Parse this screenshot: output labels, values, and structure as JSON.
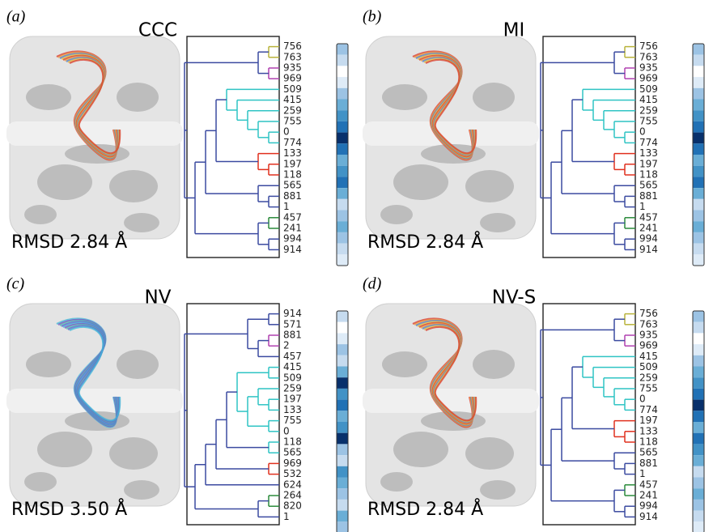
{
  "panels": [
    {
      "label": "(a)",
      "title": "CCC",
      "rmsd": "RMSD 2.84 Å",
      "leaves": [
        "756",
        "763",
        "935",
        "969",
        "509",
        "415",
        "259",
        "755",
        "0",
        "774",
        "133",
        "197",
        "118",
        "565",
        "881",
        "1",
        "457",
        "241",
        "994",
        "914"
      ],
      "colorbar": [
        "#9cc3e4",
        "#c6dbef",
        "#ffffff",
        "#deebf7",
        "#9cc3e4",
        "#6aaed6",
        "#4292c6",
        "#2171b5",
        "#08306b",
        "#2171b5",
        "#6aaed6",
        "#4292c6",
        "#2171b5",
        "#6aaed6",
        "#c6dbef",
        "#9cc3e4",
        "#6aaed6",
        "#9cc3e4",
        "#c6dbef",
        "#deebf7"
      ]
    },
    {
      "label": "(b)",
      "title": "MI",
      "rmsd": "RMSD 2.84 Å",
      "leaves": [
        "756",
        "763",
        "935",
        "969",
        "509",
        "415",
        "259",
        "755",
        "0",
        "774",
        "133",
        "197",
        "118",
        "565",
        "881",
        "1",
        "457",
        "241",
        "994",
        "914"
      ],
      "colorbar": [
        "#9cc3e4",
        "#c6dbef",
        "#ffffff",
        "#deebf7",
        "#9cc3e4",
        "#6aaed6",
        "#4292c6",
        "#2171b5",
        "#08306b",
        "#2171b5",
        "#6aaed6",
        "#4292c6",
        "#2171b5",
        "#6aaed6",
        "#c6dbef",
        "#9cc3e4",
        "#6aaed6",
        "#9cc3e4",
        "#c6dbef",
        "#deebf7"
      ]
    },
    {
      "label": "(c)",
      "title": "NV",
      "rmsd": "RMSD 3.50 Å",
      "leaves": [
        "914",
        "571",
        "881",
        "2",
        "457",
        "415",
        "509",
        "259",
        "197",
        "133",
        "755",
        "0",
        "118",
        "565",
        "969",
        "532",
        "624",
        "264",
        "820",
        "1"
      ],
      "colorbar": [
        "#c6dbef",
        "#ffffff",
        "#deebf7",
        "#9cc3e4",
        "#c6dbef",
        "#6aaed6",
        "#08306b",
        "#4292c6",
        "#2171b5",
        "#6aaed6",
        "#4292c6",
        "#08306b",
        "#9cc3e4",
        "#c6dbef",
        "#4292c6",
        "#6aaed6",
        "#9cc3e4",
        "#c6dbef",
        "#6aaed6",
        "#9cc3e4"
      ]
    },
    {
      "label": "(d)",
      "title": "NV-S",
      "rmsd": "RMSD 2.84 Å",
      "leaves": [
        "756",
        "763",
        "935",
        "969",
        "415",
        "509",
        "259",
        "755",
        "0",
        "774",
        "197",
        "133",
        "118",
        "565",
        "881",
        "1",
        "457",
        "241",
        "994",
        "914"
      ],
      "colorbar": [
        "#9cc3e4",
        "#c6dbef",
        "#ffffff",
        "#deebf7",
        "#9cc3e4",
        "#6aaed6",
        "#4292c6",
        "#2171b5",
        "#08306b",
        "#2171b5",
        "#6aaed6",
        "#2171b5",
        "#4292c6",
        "#6aaed6",
        "#c6dbef",
        "#9cc3e4",
        "#6aaed6",
        "#9cc3e4",
        "#c6dbef",
        "#deebf7"
      ]
    }
  ]
}
